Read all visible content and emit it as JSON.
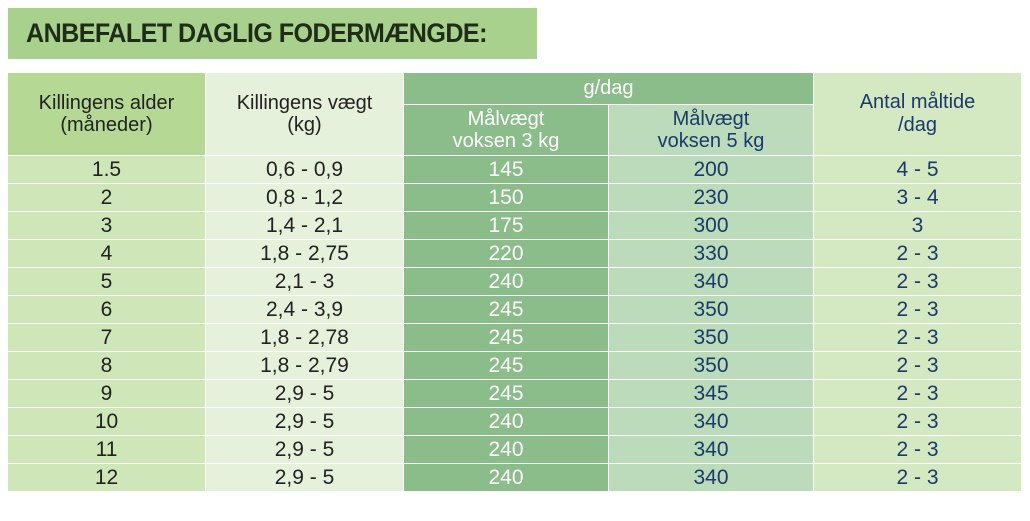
{
  "title": "ANBEFALET DAGLIG FODERMÆNGDE:",
  "header": {
    "age_line1": "Killingens alder",
    "age_line2": "(måneder)",
    "weight_line1": "Killingens vægt",
    "weight_line2": "(kg)",
    "gdag": "g/dag",
    "target3_line1": "Målvægt",
    "target3_line2": "voksen 3 kg",
    "target5_line1": "Målvægt",
    "target5_line2": "voksen 5 kg",
    "meals_line1": "Antal måltide",
    "meals_line2": "/dag"
  },
  "rows": [
    {
      "age": "1.5",
      "weight": "0,6 - 0,9",
      "g3": "145",
      "g5": "200",
      "meals": "4 - 5"
    },
    {
      "age": "2",
      "weight": "0,8 - 1,2",
      "g3": "150",
      "g5": "230",
      "meals": "3 - 4"
    },
    {
      "age": "3",
      "weight": "1,4 - 2,1",
      "g3": "175",
      "g5": "300",
      "meals": "3"
    },
    {
      "age": "4",
      "weight": "1,8 - 2,75",
      "g3": "220",
      "g5": "330",
      "meals": "2 - 3"
    },
    {
      "age": "5",
      "weight": "2,1 - 3",
      "g3": "240",
      "g5": "340",
      "meals": "2 - 3"
    },
    {
      "age": "6",
      "weight": "2,4 - 3,9",
      "g3": "245",
      "g5": "350",
      "meals": "2 - 3"
    },
    {
      "age": "7",
      "weight": "1,8 - 2,78",
      "g3": "245",
      "g5": "350",
      "meals": "2 - 3"
    },
    {
      "age": "8",
      "weight": "1,8 - 2,79",
      "g3": "245",
      "g5": "350",
      "meals": "2 - 3"
    },
    {
      "age": "9",
      "weight": "2,9 - 5",
      "g3": "245",
      "g5": "345",
      "meals": "2 - 3"
    },
    {
      "age": "10",
      "weight": "2,9 - 5",
      "g3": "240",
      "g5": "340",
      "meals": "2 - 3"
    },
    {
      "age": "11",
      "weight": "2,9 - 5",
      "g3": "240",
      "g5": "340",
      "meals": "2 - 3"
    },
    {
      "age": "12",
      "weight": "2,9 - 5",
      "g3": "240",
      "g5": "340",
      "meals": "2 - 3"
    }
  ],
  "colors": {
    "title_bg": "#a9d18e",
    "age_col": "#cfe6b9",
    "weight_col": "#e6f1dc",
    "target3_col": "#8bbd8a",
    "target5_col": "#bcdbbb",
    "meals_col": "#d4e8c2",
    "navy_text": "#1a3a6b"
  }
}
